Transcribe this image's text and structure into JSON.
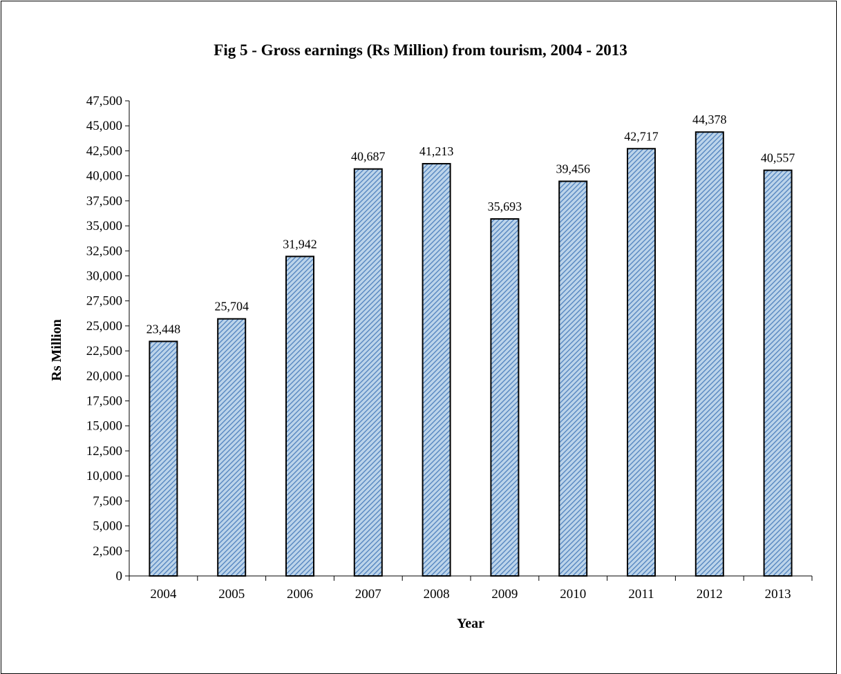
{
  "chart_data": {
    "type": "bar",
    "title": "Fig 5 - Gross earnings (Rs Million) from tourism, 2004 - 2013",
    "xlabel": "Year",
    "ylabel": "Rs Million",
    "categories": [
      "2004",
      "2005",
      "2006",
      "2007",
      "2008",
      "2009",
      "2010",
      "2011",
      "2012",
      "2013"
    ],
    "values": [
      23448,
      25704,
      31942,
      40687,
      41213,
      35693,
      39456,
      42717,
      44378,
      40557
    ],
    "value_labels": [
      "23,448",
      "25,704",
      "31,942",
      "40,687",
      "41,213",
      "35,693",
      "39,456",
      "42,717",
      "44,378",
      "40,557"
    ],
    "ylim": [
      0,
      47500
    ],
    "y_step": 2500,
    "y_ticks": [
      "0",
      "2,500",
      "5,000",
      "7,500",
      "10,000",
      "12,500",
      "15,000",
      "17,500",
      "20,000",
      "22,500",
      "25,000",
      "27,500",
      "30,000",
      "32,500",
      "35,000",
      "37,500",
      "40,000",
      "42,500",
      "45,000",
      "47,500"
    ],
    "grid": false,
    "legend": "none",
    "colors": {
      "bar_fill": "#bcd4ea",
      "bar_hatch": "#4f81bd",
      "bar_border": "#000000"
    }
  }
}
